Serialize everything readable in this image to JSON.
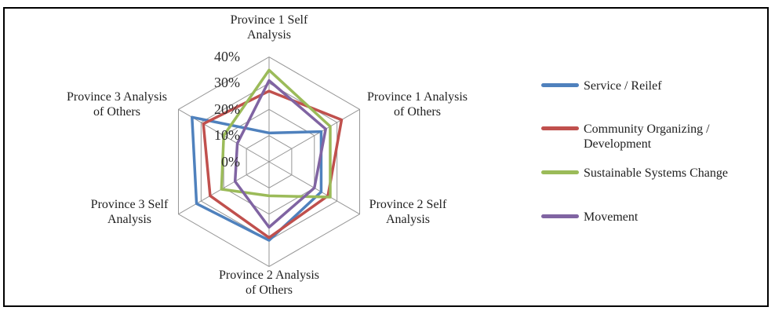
{
  "chart_data": {
    "type": "radar",
    "max": 40,
    "unit": "%",
    "grid_rings": [
      10,
      20,
      30,
      40
    ],
    "tick_labels": [
      "40%",
      "30%",
      "20%",
      "10%",
      "0%"
    ],
    "categories": [
      "Province 1 Self\nAnalysis",
      "Province 1 Analysis\nof Others",
      "Province 2 Self\nAnalysis",
      "Province 2 Analysis\nof Others",
      "Province 3 Self\nAnalysis",
      "Province 3 Analysis\nof Others"
    ],
    "series": [
      {
        "name": "Service / Reilef",
        "color": "#4F81BD",
        "values": [
          11,
          23,
          23,
          30,
          32,
          34
        ]
      },
      {
        "name": "Community Organizing /\nDevelopment",
        "color": "#C0504D",
        "values": [
          27,
          32,
          26,
          29,
          26,
          29
        ]
      },
      {
        "name": "Sustainable Systems Change",
        "color": "#9BBB59",
        "values": [
          35,
          27,
          27,
          13,
          21,
          20
        ]
      },
      {
        "name": "Movement",
        "color": "#8064A2",
        "values": [
          31,
          25,
          20,
          25,
          15,
          14
        ]
      }
    ],
    "grid_color": "#969696",
    "legend_position": "right",
    "frame_color": "#000000",
    "background_color": "#ffffff"
  }
}
